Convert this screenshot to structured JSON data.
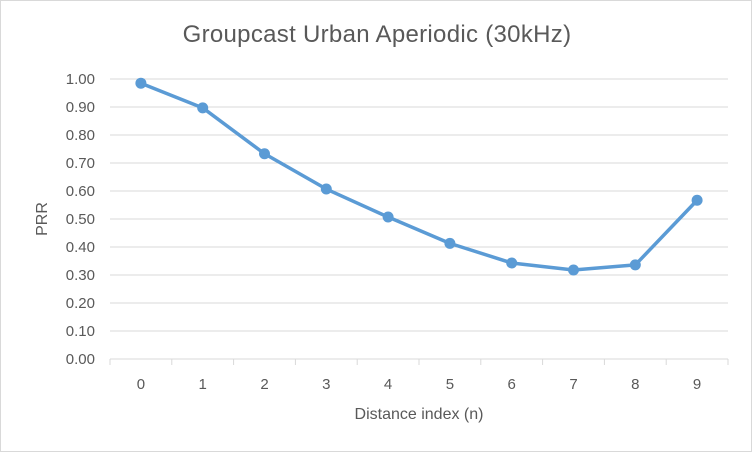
{
  "chart_data": {
    "type": "line",
    "title": "Groupcast Urban Aperiodic (30kHz)",
    "xlabel": "Distance index (n)",
    "ylabel": "PRR",
    "categories": [
      "0",
      "1",
      "2",
      "3",
      "4",
      "5",
      "6",
      "7",
      "8",
      "9"
    ],
    "series": [
      {
        "values": [
          0.985,
          0.897,
          0.733,
          0.607,
          0.507,
          0.413,
          0.343,
          0.318,
          0.336,
          0.567
        ]
      }
    ],
    "ylim": [
      0,
      1
    ],
    "yticks": [
      "0.00",
      "0.10",
      "0.20",
      "0.30",
      "0.40",
      "0.50",
      "0.60",
      "0.70",
      "0.80",
      "0.90",
      "1.00"
    ],
    "grid": true,
    "legend": "none",
    "colors": {
      "line": "#5b9bd5",
      "grid": "#d9d9d9",
      "text": "#595959"
    }
  }
}
